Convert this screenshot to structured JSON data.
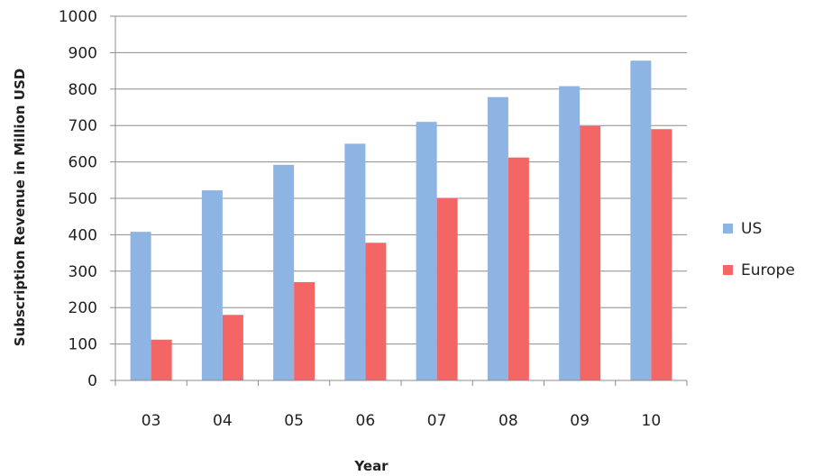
{
  "chart_data": {
    "type": "bar",
    "title": "",
    "xlabel": "Year",
    "ylabel": "Subscription Revenue in Million USD",
    "categories": [
      "03",
      "04",
      "05",
      "06",
      "07",
      "08",
      "09",
      "10"
    ],
    "series": [
      {
        "name": "US",
        "color": "#8eb4e3",
        "values": [
          408,
          522,
          592,
          650,
          710,
          778,
          808,
          878
        ]
      },
      {
        "name": "Europe",
        "color": "#f46666",
        "values": [
          112,
          180,
          270,
          378,
          500,
          612,
          698,
          690
        ]
      }
    ],
    "ylim": [
      0,
      1000
    ],
    "yticks": [
      "0",
      "100",
      "200",
      "300",
      "400",
      "500",
      "600",
      "700",
      "800",
      "900",
      "1000"
    ],
    "grid": true,
    "legend_position": "right"
  }
}
